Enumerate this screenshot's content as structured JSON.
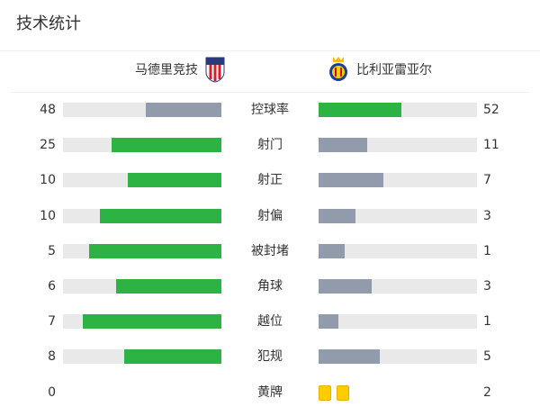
{
  "title": "技术统计",
  "home": {
    "name": "马德里竞技",
    "crest": "atletico-crest-icon"
  },
  "away": {
    "name": "比利亚雷亚尔",
    "crest": "villarreal-crest-icon"
  },
  "colors": {
    "leading": "#2db343",
    "trailing": "#929bab",
    "track": "#e9e9e9",
    "card": "#ffcc00"
  },
  "stats": [
    {
      "label": "控球率",
      "home": "48",
      "away": "52"
    },
    {
      "label": "射门",
      "home": "25",
      "away": "11"
    },
    {
      "label": "射正",
      "home": "10",
      "away": "7"
    },
    {
      "label": "射偏",
      "home": "10",
      "away": "3"
    },
    {
      "label": "被封堵",
      "home": "5",
      "away": "1"
    },
    {
      "label": "角球",
      "home": "6",
      "away": "3"
    },
    {
      "label": "越位",
      "home": "7",
      "away": "1"
    },
    {
      "label": "犯规",
      "home": "8",
      "away": "5"
    },
    {
      "label": "黄牌",
      "home": "0",
      "away": "2",
      "type": "cards"
    }
  ]
}
